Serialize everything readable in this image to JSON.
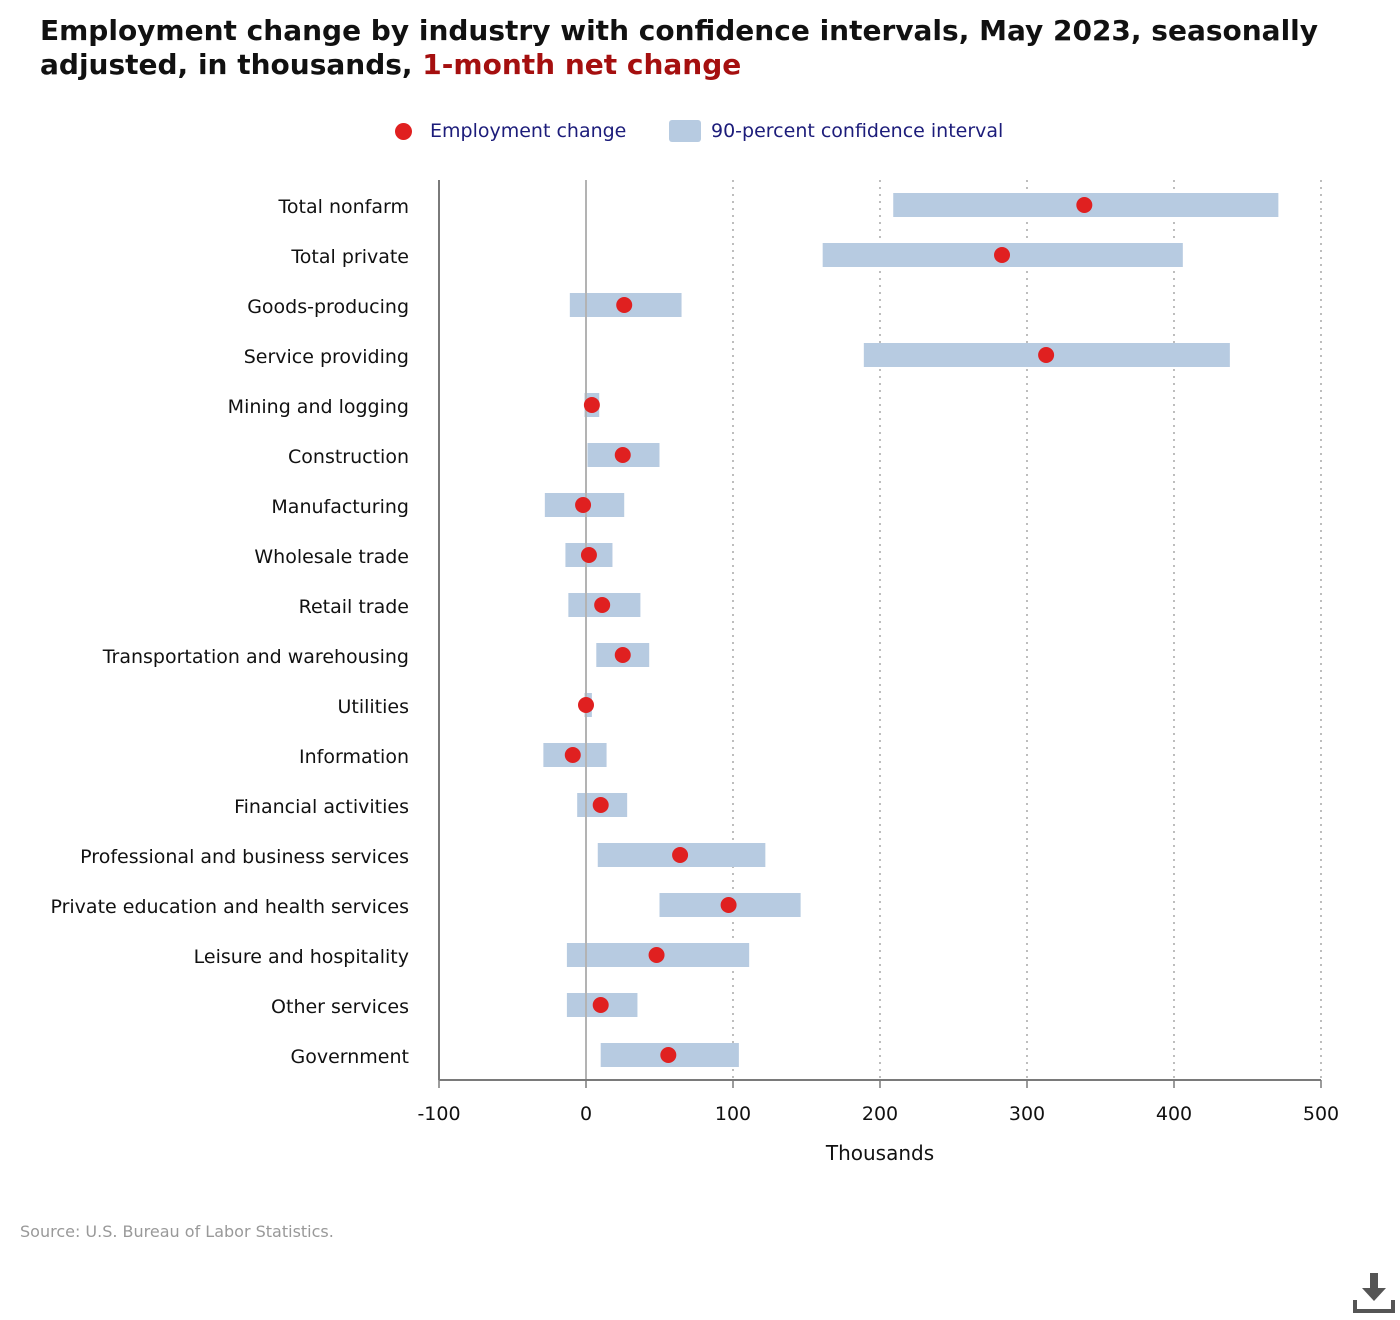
{
  "title": {
    "main": "Employment change by industry with confidence intervals, May 2023, seasonally adjusted, in thousands,",
    "highlight": "1-month net change"
  },
  "legend": {
    "point_label": "Employment change",
    "interval_label": "90-percent confidence interval"
  },
  "colors": {
    "point": "#e02020",
    "interval": "#b7cbe1",
    "highlight": "#a50f0f",
    "legend_text": "#1c1c7a"
  },
  "source": "Source: U.S. Bureau of Labor Statistics.",
  "icons": {
    "download": "download-icon"
  },
  "chart_data": {
    "type": "interval-dot",
    "xlabel": "Thousands",
    "xlim": [
      -100,
      500
    ],
    "xticks": [
      "-100",
      "0",
      "100",
      "200",
      "300",
      "400",
      "500"
    ],
    "gridlines": "dotted-vertical",
    "legend_position": "top-center",
    "categories": [
      "Total nonfarm",
      "Total private",
      "Goods-producing",
      "Service providing",
      "Mining and logging",
      "Construction",
      "Manufacturing",
      "Wholesale trade",
      "Retail trade",
      "Transportation and warehousing",
      "Utilities",
      "Information",
      "Financial activities",
      "Professional and business services",
      "Private education and health services",
      "Leisure and hospitality",
      "Other services",
      "Government"
    ],
    "series": [
      {
        "name": "Employment change",
        "values": [
          339,
          283,
          26,
          313,
          4,
          25,
          -2,
          2,
          11,
          25,
          0,
          -9,
          10,
          64,
          97,
          48,
          10,
          56
        ]
      },
      {
        "name": "90-percent confidence interval",
        "lower": [
          209,
          161,
          -11,
          189,
          -1,
          1,
          -28,
          -14,
          -12,
          7,
          -1,
          -29,
          -6,
          8,
          50,
          -13,
          -13,
          10
        ],
        "upper": [
          471,
          406,
          65,
          438,
          9,
          50,
          26,
          18,
          37,
          43,
          4,
          14,
          28,
          122,
          146,
          111,
          35,
          104
        ]
      }
    ]
  }
}
